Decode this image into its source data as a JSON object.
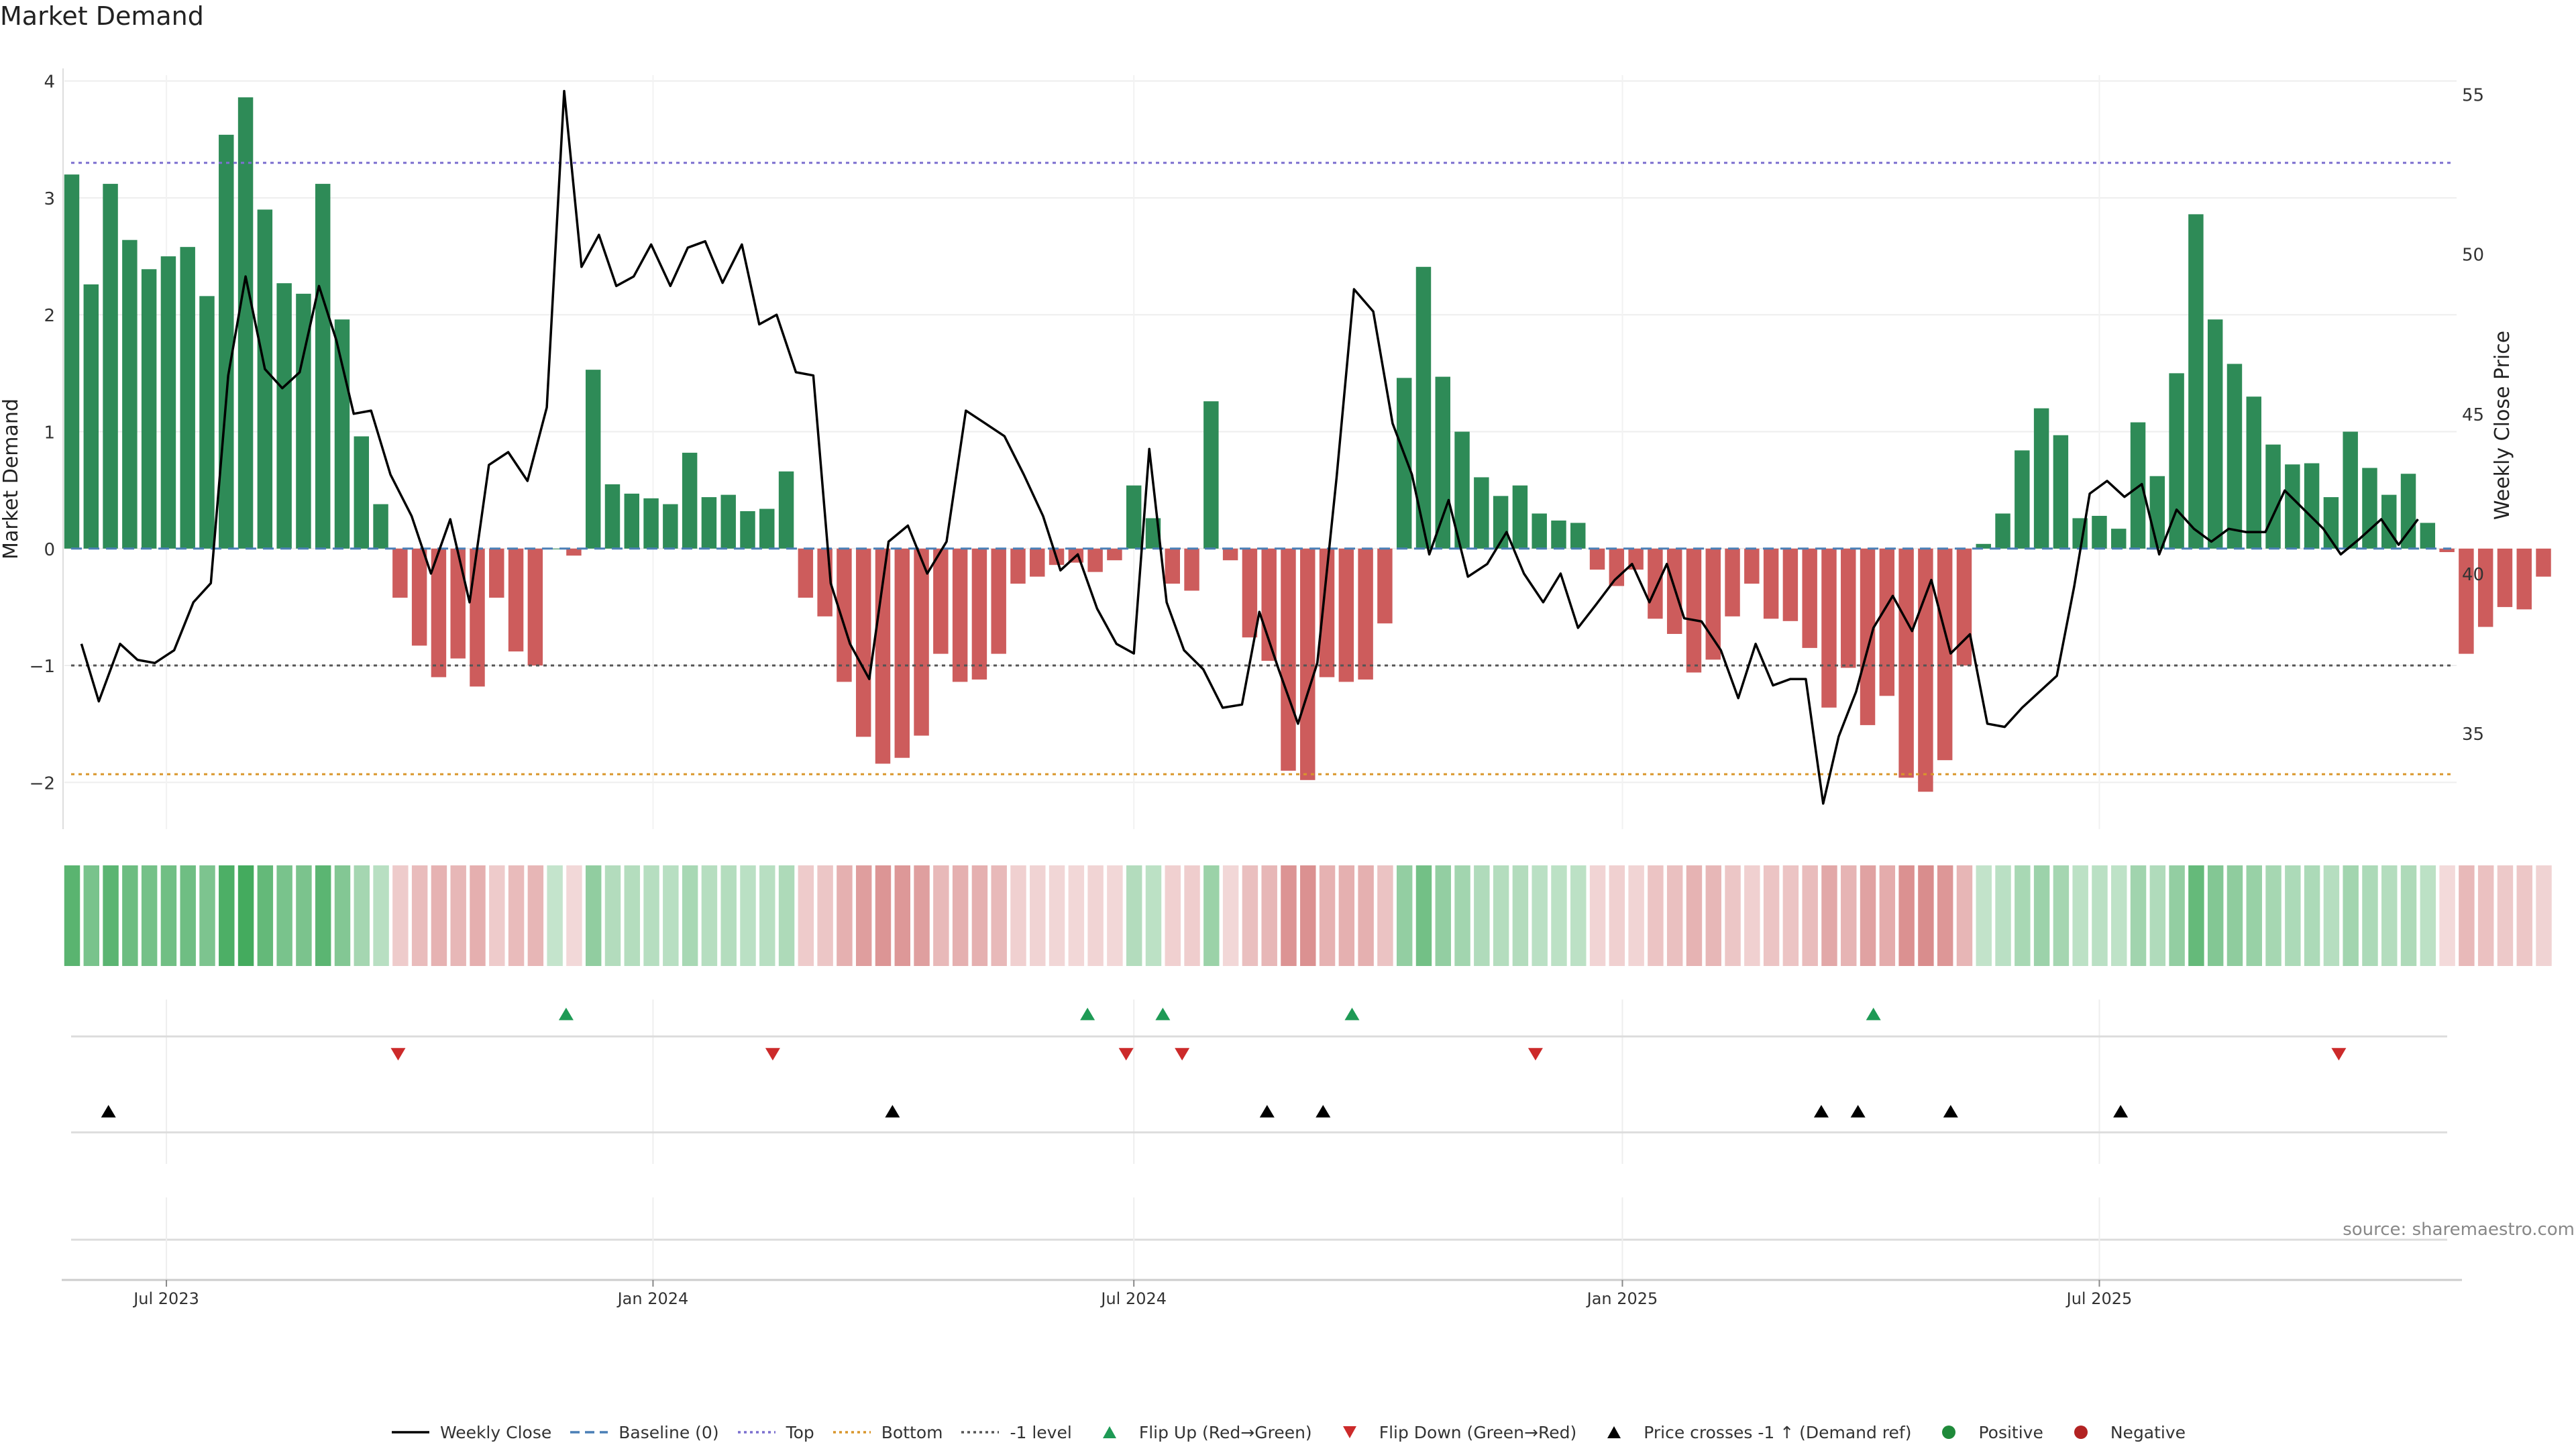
{
  "chart_data": {
    "type": "bar",
    "title": "Market Demand",
    "ylabel": "Market Demand",
    "ylabel_right": "Weekly Close Price",
    "ylim": [
      -2.4,
      4.05
    ],
    "ylim_right": [
      32.0,
      55.6
    ],
    "yticks": [
      -2,
      -1,
      0,
      1,
      2,
      3,
      4
    ],
    "yticks_labels": [
      "−2",
      "−1",
      "0",
      "1",
      "2",
      "3",
      "4"
    ],
    "yticks_right": [
      35,
      40,
      45,
      50,
      55
    ],
    "x_start_week": 0,
    "x_end_week": 123.5,
    "x_ticks": [
      {
        "label": "Jul 2023",
        "week": 4.9
      },
      {
        "label": "Jan 2024",
        "week": 30.1
      },
      {
        "label": "Jul 2024",
        "week": 55.0
      },
      {
        "label": "Jan 2025",
        "week": 80.3
      },
      {
        "label": "Jul 2025",
        "week": 105.0
      }
    ],
    "reference_lines": {
      "top": 3.3,
      "bottom": -1.93,
      "minus_one": -1.0
    },
    "demand": [
      3.2,
      2.26,
      3.12,
      2.64,
      2.39,
      2.5,
      2.58,
      2.16,
      3.54,
      3.86,
      2.9,
      2.27,
      2.18,
      3.12,
      1.96,
      0.96,
      0.38,
      -0.42,
      -0.83,
      -1.1,
      -0.94,
      -1.18,
      -0.42,
      -0.88,
      -1.0,
      0.0,
      -0.06,
      1.53,
      0.55,
      0.47,
      0.43,
      0.38,
      0.82,
      0.44,
      0.46,
      0.32,
      0.34,
      0.66,
      -0.42,
      -0.58,
      -1.14,
      -1.61,
      -1.84,
      -1.79,
      -1.6,
      -0.9,
      -1.14,
      -1.12,
      -0.9,
      -0.3,
      -0.24,
      -0.14,
      -0.12,
      -0.2,
      -0.1,
      0.54,
      0.26,
      -0.3,
      -0.36,
      1.26,
      -0.1,
      -0.76,
      -0.96,
      -1.9,
      -1.98,
      -1.1,
      -1.14,
      -1.12,
      -0.64,
      1.46,
      2.41,
      1.47,
      1.0,
      0.61,
      0.45,
      0.54,
      0.3,
      0.24,
      0.22,
      -0.18,
      -0.32,
      -0.18,
      -0.6,
      -0.73,
      -1.06,
      -0.95,
      -0.58,
      -0.3,
      -0.6,
      -0.62,
      -0.85,
      -1.36,
      -1.02,
      -1.51,
      -1.26,
      -1.96,
      -2.08,
      -1.81,
      -1.0,
      0.04,
      0.3,
      0.84,
      1.2,
      0.97,
      0.26,
      0.28,
      0.17,
      1.08,
      0.62,
      1.5,
      2.86,
      1.96,
      1.58,
      1.3,
      0.89,
      0.72,
      0.73,
      0.44,
      1.0,
      0.69,
      0.46,
      0.64,
      0.22,
      -0.03,
      -0.9,
      -0.67,
      -0.5,
      -0.52,
      -0.24
    ],
    "close_points": [
      [
        0.5,
        37.8
      ],
      [
        1.4,
        36.0
      ],
      [
        2.5,
        37.8
      ],
      [
        3.4,
        37.3
      ],
      [
        4.3,
        37.2
      ],
      [
        5.3,
        37.6
      ],
      [
        6.3,
        39.1
      ],
      [
        7.2,
        39.7
      ],
      [
        8.1,
        46.2
      ],
      [
        9.0,
        49.3
      ],
      [
        10.0,
        46.4
      ],
      [
        10.9,
        45.8
      ],
      [
        11.8,
        46.3
      ],
      [
        12.8,
        49.0
      ],
      [
        13.7,
        47.3
      ],
      [
        14.6,
        45.0
      ],
      [
        15.5,
        45.1
      ],
      [
        16.5,
        43.1
      ],
      [
        17.6,
        41.8
      ],
      [
        18.6,
        40.0
      ],
      [
        19.6,
        41.7
      ],
      [
        20.6,
        39.1
      ],
      [
        21.6,
        43.4
      ],
      [
        22.6,
        43.8
      ],
      [
        23.6,
        42.9
      ],
      [
        24.6,
        45.2
      ],
      [
        25.5,
        55.1
      ],
      [
        26.4,
        49.6
      ],
      [
        27.3,
        50.6
      ],
      [
        28.2,
        49.0
      ],
      [
        29.1,
        49.3
      ],
      [
        30.0,
        50.3
      ],
      [
        31.0,
        49.0
      ],
      [
        31.9,
        50.2
      ],
      [
        32.8,
        50.4
      ],
      [
        33.7,
        49.1
      ],
      [
        34.7,
        50.3
      ],
      [
        35.6,
        47.8
      ],
      [
        36.5,
        48.1
      ],
      [
        37.5,
        46.3
      ],
      [
        38.4,
        46.2
      ],
      [
        39.3,
        39.7
      ],
      [
        40.3,
        37.8
      ],
      [
        41.3,
        36.7
      ],
      [
        42.3,
        41.0
      ],
      [
        43.3,
        41.5
      ],
      [
        44.3,
        40.0
      ],
      [
        45.3,
        41.0
      ],
      [
        46.3,
        45.1
      ],
      [
        47.3,
        44.7
      ],
      [
        48.3,
        44.3
      ],
      [
        49.3,
        43.1
      ],
      [
        50.3,
        41.8
      ],
      [
        51.2,
        40.1
      ],
      [
        52.1,
        40.6
      ],
      [
        53.1,
        38.9
      ],
      [
        54.1,
        37.8
      ],
      [
        55.0,
        37.5
      ],
      [
        55.8,
        43.9
      ],
      [
        56.7,
        39.1
      ],
      [
        57.6,
        37.6
      ],
      [
        58.6,
        37.0
      ],
      [
        59.6,
        35.8
      ],
      [
        60.6,
        35.9
      ],
      [
        61.5,
        38.8
      ],
      [
        62.5,
        37.0
      ],
      [
        63.5,
        35.3
      ],
      [
        64.5,
        37.2
      ],
      [
        65.5,
        43.0
      ],
      [
        66.4,
        48.9
      ],
      [
        67.4,
        48.2
      ],
      [
        68.4,
        44.7
      ],
      [
        69.4,
        43.1
      ],
      [
        70.3,
        40.6
      ],
      [
        71.3,
        42.3
      ],
      [
        72.3,
        39.9
      ],
      [
        73.3,
        40.3
      ],
      [
        74.3,
        41.3
      ],
      [
        75.2,
        40.0
      ],
      [
        76.2,
        39.1
      ],
      [
        77.1,
        40.0
      ],
      [
        78.0,
        38.3
      ],
      [
        78.9,
        39.0
      ],
      [
        79.9,
        39.8
      ],
      [
        80.8,
        40.3
      ],
      [
        81.7,
        39.1
      ],
      [
        82.6,
        40.3
      ],
      [
        83.5,
        38.6
      ],
      [
        84.4,
        38.5
      ],
      [
        85.4,
        37.6
      ],
      [
        86.3,
        36.1
      ],
      [
        87.2,
        37.8
      ],
      [
        88.1,
        36.5
      ],
      [
        89.0,
        36.7
      ],
      [
        89.8,
        36.7
      ],
      [
        90.7,
        32.8
      ],
      [
        91.5,
        34.9
      ],
      [
        92.4,
        36.3
      ],
      [
        93.3,
        38.3
      ],
      [
        94.3,
        39.3
      ],
      [
        95.3,
        38.2
      ],
      [
        96.3,
        39.8
      ],
      [
        97.3,
        37.5
      ],
      [
        98.3,
        38.1
      ],
      [
        99.2,
        35.3
      ],
      [
        100.1,
        35.2
      ],
      [
        101.0,
        35.8
      ],
      [
        101.9,
        36.3
      ],
      [
        102.8,
        36.8
      ],
      [
        103.7,
        39.6
      ],
      [
        104.5,
        42.5
      ],
      [
        105.4,
        42.9
      ],
      [
        106.3,
        42.4
      ],
      [
        107.2,
        42.8
      ],
      [
        108.1,
        40.6
      ],
      [
        109.0,
        42.0
      ],
      [
        109.9,
        41.4
      ],
      [
        110.8,
        41.0
      ],
      [
        111.7,
        41.4
      ],
      [
        112.6,
        41.3
      ],
      [
        113.6,
        41.3
      ],
      [
        114.6,
        42.6
      ],
      [
        115.6,
        42.0
      ],
      [
        116.6,
        41.4
      ],
      [
        117.5,
        40.6
      ],
      [
        118.5,
        41.1
      ],
      [
        119.6,
        41.7
      ],
      [
        120.5,
        40.9
      ],
      [
        121.5,
        41.7
      ]
    ],
    "flip_up_weeks": [
      25.6,
      52.6,
      56.5,
      66.3,
      93.3
    ],
    "flip_down_weeks": [
      16.9,
      36.3,
      54.6,
      57.5,
      75.8,
      117.4
    ],
    "price_cross_weeks": [
      1.9,
      42.5,
      61.9,
      64.8,
      90.6,
      92.5,
      97.3,
      106.1
    ],
    "legend": [
      {
        "label": "Weekly Close",
        "kind": "line",
        "color": "#000000"
      },
      {
        "label": "Baseline (0)",
        "kind": "dashed",
        "color": "#4a7fb5"
      },
      {
        "label": "Top",
        "kind": "dotted",
        "color": "#7b6fcf"
      },
      {
        "label": "Bottom",
        "kind": "dotted",
        "color": "#d9962b"
      },
      {
        "label": "-1 level",
        "kind": "dotted",
        "color": "#555555"
      },
      {
        "label": "Flip Up (Red→Green)",
        "kind": "tri-up",
        "color": "#1e9a55"
      },
      {
        "label": "Flip Down (Green→Red)",
        "kind": "tri-down",
        "color": "#cc2a2a"
      },
      {
        "label": "Price crosses -1 ↑ (Demand ref)",
        "kind": "tri-up",
        "color": "#000000"
      },
      {
        "label": "Positive",
        "kind": "dot",
        "color": "#1f8a3a"
      },
      {
        "label": "Negative",
        "kind": "dot",
        "color": "#b22222"
      }
    ],
    "source": "source: sharemaestro.com"
  },
  "colors": {
    "positive_bar": "#2e8b57",
    "negative_bar": "#cd5c5c",
    "heat_positive": "#3aa655",
    "heat_negative": "#d07070"
  }
}
